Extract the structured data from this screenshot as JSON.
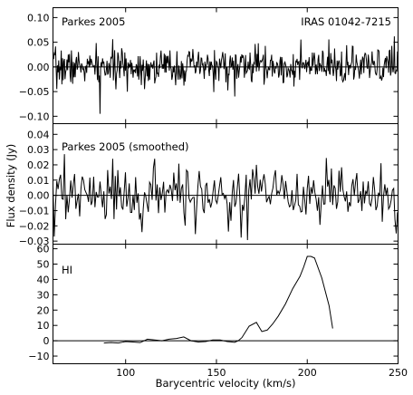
{
  "chart_data": {
    "type": "line",
    "xlabel": "Barycentric velocity (km/s)",
    "ylabel": "Flux density (Jy)",
    "xlim": [
      60,
      250
    ],
    "xticks": [
      100,
      150,
      200,
      250
    ],
    "grid": false,
    "panels": [
      {
        "label_left": "Parkes 2005",
        "label_right": "IRAS 01042-7215",
        "ylim": [
          -0.115,
          0.12
        ],
        "yticks": [
          -0.1,
          -0.05,
          0.0,
          0.05,
          0.1
        ],
        "ytick_labels": [
          "−0.10",
          "−0.05",
          "0.00",
          "0.05",
          "0.10"
        ],
        "zero_line": true,
        "noise": {
          "x_start": 60,
          "x_end": 250,
          "step": 0.35,
          "amplitude": 0.018,
          "seed": 7
        },
        "spikes": [
          {
            "x": 86,
            "y": -0.095
          },
          {
            "x": 160,
            "y": -0.06
          },
          {
            "x": 173,
            "y": 0.048
          },
          {
            "x": 248,
            "y": 0.062
          },
          {
            "x": 62,
            "y": -0.045
          }
        ]
      },
      {
        "label_left": "Parkes 2005 (smoothed)",
        "ylim": [
          -0.032,
          0.047
        ],
        "yticks": [
          -0.03,
          -0.02,
          -0.01,
          0.0,
          0.01,
          0.02,
          0.03,
          0.04
        ],
        "ytick_labels": [
          "−0.03",
          "−0.02",
          "−0.01",
          "0.00",
          "0.01",
          "0.02",
          "0.03",
          "0.04"
        ],
        "zero_line": true,
        "noise": {
          "x_start": 60,
          "x_end": 250,
          "step": 0.7,
          "amplitude": 0.0095,
          "seed": 21
        },
        "spikes": [
          {
            "x": 61,
            "y": -0.027
          },
          {
            "x": 66,
            "y": 0.027
          },
          {
            "x": 93,
            "y": 0.024
          },
          {
            "x": 116,
            "y": 0.024
          },
          {
            "x": 172,
            "y": 0.02
          },
          {
            "x": 249,
            "y": -0.025
          }
        ]
      },
      {
        "label_left": "HI",
        "ylim": [
          -15,
          63
        ],
        "yticks": [
          -10,
          0,
          10,
          20,
          30,
          40,
          50,
          60
        ],
        "ytick_labels": [
          "−10",
          "0",
          "10",
          "20",
          "30",
          "40",
          "50",
          "60"
        ],
        "zero_line": true,
        "x": [
          88,
          92,
          96,
          98,
          100,
          104,
          108,
          112,
          116,
          120,
          124,
          128,
          132,
          136,
          140,
          144,
          148,
          152,
          156,
          160,
          162,
          164,
          168,
          172,
          175,
          178,
          181,
          184,
          188,
          192,
          196,
          198,
          200,
          202,
          204,
          208,
          212,
          214
        ],
        "y": [
          -1.5,
          -1.2,
          -1.5,
          -1.0,
          -0.5,
          -0.8,
          -1.2,
          1.0,
          0.5,
          0.0,
          1.0,
          1.5,
          2.5,
          0.0,
          -0.8,
          -0.5,
          0.5,
          0.5,
          -0.5,
          -1.0,
          0.0,
          2.0,
          9.5,
          12.0,
          6.0,
          7.0,
          11.0,
          16.0,
          24.0,
          34.0,
          42.0,
          48.0,
          55.0,
          55.0,
          54.0,
          41.0,
          23.0,
          8.0
        ]
      }
    ]
  }
}
